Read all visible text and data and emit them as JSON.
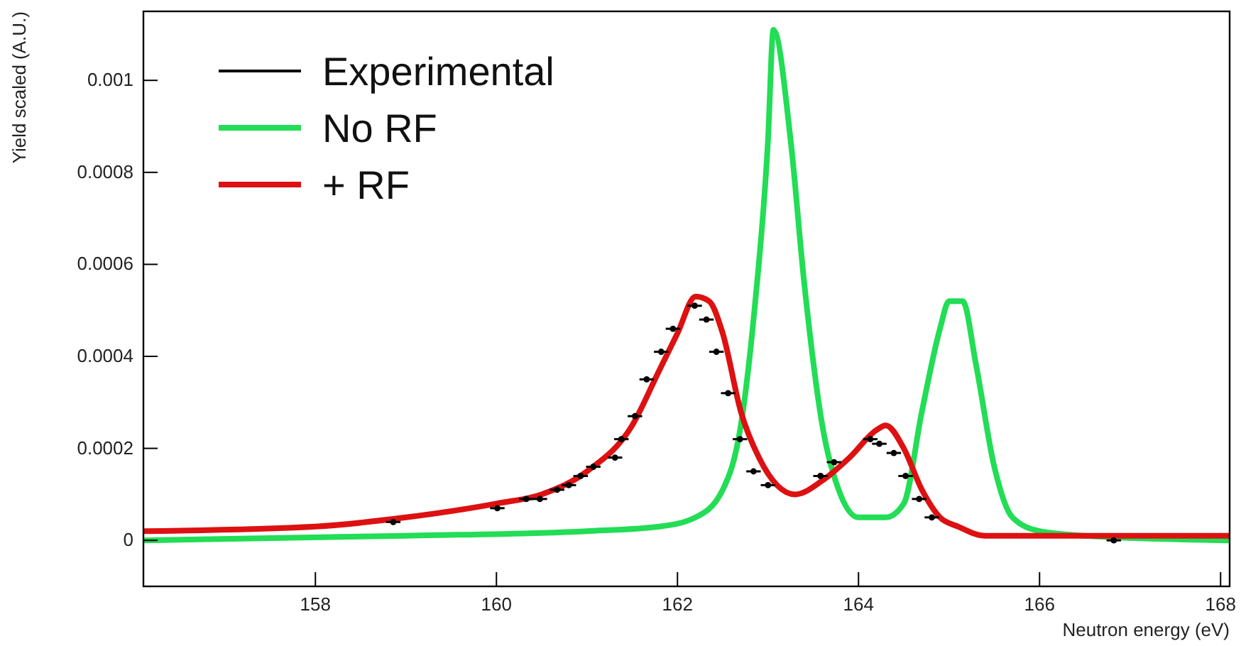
{
  "chart_data": {
    "type": "line",
    "xlabel": "Neutron energy (eV)",
    "ylabel": "Yield scaled (A.U.)",
    "xlim": [
      156.1,
      168.1
    ],
    "xticks": [
      158,
      160,
      162,
      164,
      166,
      168
    ],
    "ylim": [
      -0.0001,
      0.00115
    ],
    "yticks": [
      0,
      0.0002,
      0.0004,
      0.0006,
      0.0008,
      0.001
    ],
    "grid": false,
    "legend": "top left",
    "series": [
      {
        "name": "Experimental",
        "type": "scatter",
        "marker": "circle",
        "color": "#000000",
        "x": [
          158.86,
          160.01,
          160.33,
          160.48,
          160.67,
          160.8,
          160.93,
          161.07,
          161.31,
          161.38,
          161.53,
          161.66,
          161.82,
          161.95,
          162.19,
          162.32,
          162.43,
          162.56,
          162.69,
          162.84,
          163.0,
          163.58,
          163.73,
          164.13,
          164.23,
          164.39,
          164.52,
          164.67,
          164.81,
          166.82
        ],
        "values": [
          4e-05,
          7e-05,
          9e-05,
          9e-05,
          0.00011,
          0.00012,
          0.00014,
          0.00016,
          0.00018,
          0.00022,
          0.00027,
          0.00035,
          0.00041,
          0.00046,
          0.00051,
          0.00048,
          0.00041,
          0.00032,
          0.00022,
          0.00015,
          0.00012,
          0.00014,
          0.00017,
          0.00022,
          0.00021,
          0.00019,
          0.00014,
          9e-05,
          5e-05,
          0
        ],
        "xerrors": [
          0.08,
          0.08,
          0.08,
          0.08,
          0.08,
          0.08,
          0.08,
          0.08,
          0.08,
          0.08,
          0.08,
          0.08,
          0.08,
          0.08,
          0.08,
          0.08,
          0.08,
          0.08,
          0.08,
          0.08,
          0.08,
          0.08,
          0.08,
          0.08,
          0.08,
          0.08,
          0.08,
          0.08,
          0.08,
          0.08
        ]
      },
      {
        "name": "No RF",
        "color": "#22dd55",
        "x": [
          156.1,
          159,
          161,
          161.8,
          162.2,
          162.5,
          162.7,
          162.85,
          163.0,
          163.06,
          163.25,
          163.4,
          163.6,
          163.8,
          164.0,
          164.3,
          164.5,
          164.7,
          164.9,
          165.0,
          165.15,
          165.3,
          165.5,
          165.7,
          166,
          166.5,
          168.1
        ],
        "values": [
          0,
          1e-05,
          2e-05,
          3e-05,
          5e-05,
          0.00011,
          0.00025,
          0.0005,
          0.00087,
          0.00111,
          0.00087,
          0.00056,
          0.00025,
          0.0001,
          5e-05,
          5e-05,
          8e-05,
          0.00028,
          0.00046,
          0.00052,
          0.00052,
          0.00038,
          0.00016,
          5e-05,
          2e-05,
          1e-05,
          0
        ]
      },
      {
        "name": "+ RF",
        "color": "#dd1111",
        "x": [
          156.1,
          158,
          159,
          160,
          160.5,
          161,
          161.5,
          161.8,
          162,
          162.2,
          162.35,
          162.5,
          162.7,
          162.9,
          163.1,
          163.3,
          163.6,
          163.9,
          164.2,
          164.3,
          164.5,
          164.7,
          164.9,
          165.1,
          165.4,
          166,
          168.1
        ],
        "values": [
          2e-05,
          3e-05,
          5e-05,
          8e-05,
          0.0001,
          0.00015,
          0.00025,
          0.00037,
          0.00045,
          0.00053,
          0.00052,
          0.00045,
          0.00028,
          0.00018,
          0.00012,
          0.0001,
          0.00013,
          0.00018,
          0.00024,
          0.00025,
          0.0002,
          0.00011,
          5e-05,
          3e-05,
          1e-05,
          1e-05,
          1e-05
        ]
      }
    ]
  }
}
